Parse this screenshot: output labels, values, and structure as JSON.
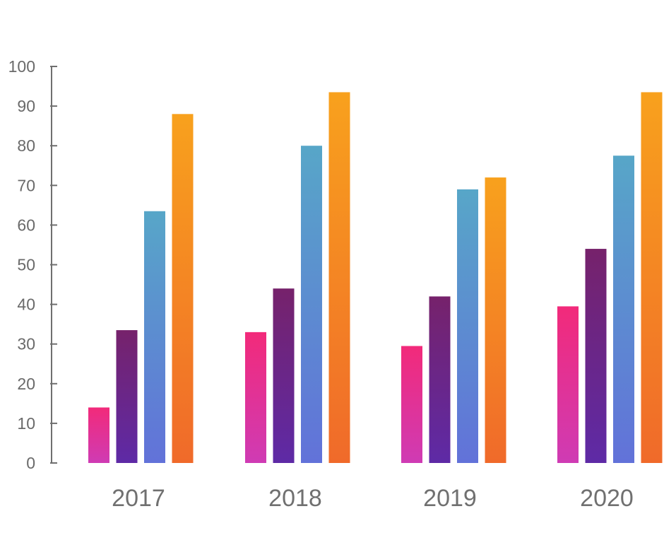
{
  "chart_data": {
    "type": "bar",
    "categories": [
      "2017",
      "2018",
      "2019",
      "2020"
    ],
    "series": [
      {
        "values": [
          14,
          33,
          29.5,
          39.5
        ],
        "gradient": [
          "#f22a7a",
          "#cf3bb4"
        ]
      },
      {
        "values": [
          33.5,
          44,
          42,
          54
        ],
        "gradient": [
          "#76226b",
          "#5e2aa6"
        ]
      },
      {
        "values": [
          63.5,
          80,
          69,
          77.5
        ],
        "gradient": [
          "#57a6c8",
          "#6272d9"
        ]
      },
      {
        "values": [
          88,
          93.5,
          72,
          93.5
        ],
        "gradient": [
          "#f8a11d",
          "#f06a2a"
        ]
      }
    ],
    "title": "",
    "xlabel": "",
    "ylabel": "",
    "ylim": [
      0,
      100
    ],
    "yticks": [
      "0",
      "10",
      "20",
      "30",
      "40",
      "50",
      "60",
      "70",
      "80",
      "90",
      "100"
    ],
    "grid": false,
    "legend": "none",
    "colors": {
      "axis": "#6f6f6f",
      "tick_text": "#6a6a6a",
      "category_text": "#707070",
      "background": "#ffffff"
    }
  }
}
